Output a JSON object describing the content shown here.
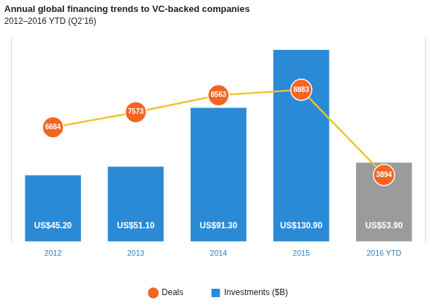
{
  "chart_data": {
    "type": "bar",
    "title": "Annual global financing trends to VC-backed companies",
    "subtitle": "2012–2016 YTD (Q2’16)",
    "categories": [
      "2012",
      "2013",
      "2014",
      "2015",
      "2016 YTD"
    ],
    "series": [
      {
        "name": "Investments ($B)",
        "type": "bar",
        "colors": [
          "#2b8ad6",
          "#2b8ad6",
          "#2b8ad6",
          "#2b8ad6",
          "#9b9b9b"
        ],
        "values": [
          45.2,
          51.1,
          91.3,
          130.9,
          53.9
        ],
        "value_labels": [
          "US$45.20",
          "US$51.10",
          "US$91.30",
          "US$130.90",
          "US$53.90"
        ]
      },
      {
        "name": "Deals",
        "type": "line",
        "axis": "y2",
        "color": "#f2c12e",
        "colors": [
          "#f26522",
          "#f26522",
          "#f26522",
          "#f26522",
          "#f26522"
        ],
        "marker": "circle",
        "values": [
          6684,
          7573,
          8563,
          8883,
          3894
        ]
      }
    ],
    "ylim": [
      0,
      140
    ],
    "y2lim": [
      0,
      12000
    ],
    "grid": false,
    "legend": "bottom",
    "data_labels": true,
    "tick_labels": "x"
  }
}
